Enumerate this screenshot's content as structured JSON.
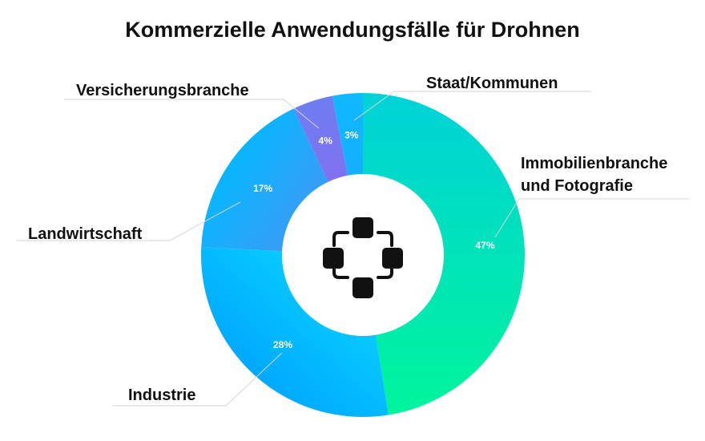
{
  "chart_data": {
    "type": "pie",
    "variant": "donut",
    "title": "Kommerzielle Anwendungsfälle für Drohnen",
    "center_icon": "drone-network-icon",
    "slices": [
      {
        "label": [
          "Immobilienbranche",
          "und Fotografie"
        ],
        "value": 47,
        "value_label": "47%",
        "color_start": "#00f59b",
        "color_end": "#00d2d8"
      },
      {
        "label": [
          "Industrie"
        ],
        "value": 28,
        "value_label": "28%",
        "color_start": "#00a9ff",
        "color_end": "#0bd8ff"
      },
      {
        "label": [
          "Landwirtschaft"
        ],
        "value": 17,
        "value_label": "17%",
        "color_start": "#08b6ff",
        "color_end": "#5c8af0"
      },
      {
        "label": [
          "Versicherungsbranche"
        ],
        "value": 4,
        "value_label": "4%",
        "color_start": "#6e7df0",
        "color_end": "#9466ee"
      },
      {
        "label": [
          "Staat/Kommunen"
        ],
        "value": 3,
        "value_label": "3%",
        "color_start": "#0fb8ff",
        "color_end": "#1aa6ff"
      }
    ]
  }
}
